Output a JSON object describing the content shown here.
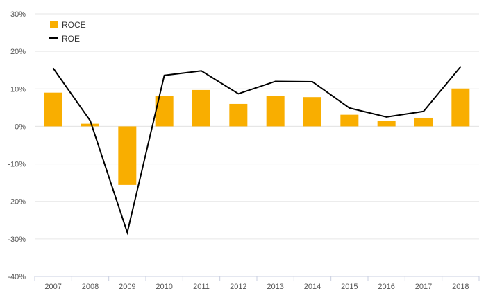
{
  "chart_data": {
    "type": "bar",
    "title": "",
    "xlabel": "",
    "ylabel": "",
    "categories": [
      "2007",
      "2008",
      "2009",
      "2010",
      "2011",
      "2012",
      "2013",
      "2014",
      "2015",
      "2016",
      "2017",
      "2018"
    ],
    "ylim": [
      -40,
      30
    ],
    "yticks": [
      30,
      20,
      10,
      0,
      -10,
      -20,
      -30,
      -40
    ],
    "ytick_labels": [
      "30%",
      "20%",
      "10%",
      "0%",
      "-10%",
      "-20%",
      "-30%",
      "-40%"
    ],
    "grid": true,
    "legend_position": "top-left",
    "series": [
      {
        "name": "ROCE",
        "type": "bar",
        "color": "#F9AE00",
        "values": [
          9.0,
          0.7,
          -15.6,
          8.2,
          9.7,
          6.0,
          8.2,
          7.8,
          3.1,
          1.4,
          2.3,
          10.1
        ]
      },
      {
        "name": "ROE",
        "type": "line",
        "color": "#000000",
        "values": [
          15.5,
          1.5,
          -28.3,
          13.6,
          14.8,
          8.7,
          12.0,
          11.9,
          4.9,
          2.5,
          4.0,
          15.9
        ]
      }
    ]
  }
}
